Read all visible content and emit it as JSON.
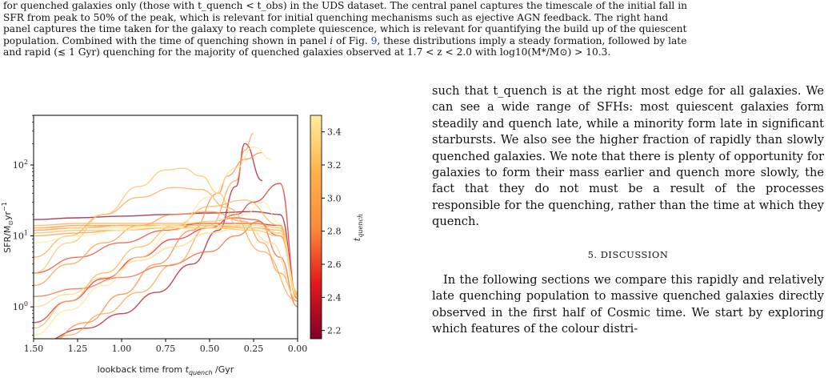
{
  "caption": {
    "line1": "for quenched galaxies only (those with t_quench < t_obs) in the UDS dataset. The central panel captures the timescale of the initial fall in",
    "line2": "SFR from peak to 50% of the peak, which is relevant for initial quenching mechanisms such as ejective AGN feedback. The right hand",
    "line3": "panel captures the time taken for the galaxy to reach complete quiescence, which is relevant for quantifying the build up of the quiescent",
    "line4a": "population. Combined with the time of quenching shown in panel ",
    "line4i": "i",
    "line4b": " of Fig. ",
    "line4ref": "9",
    "line4c": ", these distributions imply a steady formation, followed by late",
    "line5": "and rapid (≲ 1 Gyr) quenching for the majority of quenched galaxies observed at 1.7 < z < 2.0 with log10(M*/M⊙) > 10.3."
  },
  "text": {
    "para1": "such that t_quench is at the right most edge for all galaxies. We can see a wide range of SFHs: most quiescent galaxies form steadily and quench late, while a minority form late in significant starbursts. We also see the higher fraction of rapidly than slowly quenched galaxies. We note that there is plenty of opportunity for galaxies to form their mass earlier and quench more slowly, the fact that they do not must be a result of the processes responsible for the quenching, rather than the time at which they quench.",
    "section": "5. DISCUSSION",
    "para2": "In the following sections we compare this rapidly and relatively late quenching population to massive quenched galaxies directly observed in the first half of Cosmic time. We start by exploring which features of the colour distri-"
  },
  "chart_data": {
    "type": "line",
    "xlabel": "lookback time from t_quench /Gyr",
    "ylabel": "SFR/M⊙yr⁻¹",
    "colorbar_label": "t_quench",
    "x_ticks": [
      "1.50",
      "1.25",
      "1.00",
      "0.75",
      "0.50",
      "0.25",
      "0.00"
    ],
    "y_ticks": [
      "10^0",
      "10^1",
      "10^2"
    ],
    "colorbar_ticks": [
      "2.2",
      "2.4",
      "2.6",
      "2.8",
      "3.0",
      "3.2",
      "3.4"
    ],
    "xlim": [
      1.5,
      0.0
    ],
    "ylim_log10": [
      -0.45,
      2.7
    ],
    "colorbar_range": [
      2.15,
      3.5
    ],
    "colormap": [
      "#800026",
      "#e31a1c",
      "#fd8d3c",
      "#feb24c",
      "#ffeda0"
    ],
    "series": [
      {
        "tq": 2.2,
        "x": [
          1.5,
          1.25,
          1.0,
          0.75,
          0.5,
          0.25,
          0.1,
          0.0
        ],
        "y": [
          17,
          18,
          19,
          20,
          21,
          22,
          20,
          1.4
        ]
      },
      {
        "tq": 2.3,
        "x": [
          1.5,
          1.2,
          1.0,
          0.8,
          0.6,
          0.45,
          0.35,
          0.3,
          0.2
        ],
        "y": [
          0.3,
          0.5,
          0.8,
          1.6,
          4,
          12,
          50,
          200,
          60
        ]
      },
      {
        "tq": 2.4,
        "x": [
          1.5,
          1.25,
          1.0,
          0.75,
          0.5,
          0.25,
          0.1,
          0.0
        ],
        "y": [
          12,
          13,
          14,
          14,
          15,
          15,
          14,
          1.3
        ]
      },
      {
        "tq": 2.5,
        "x": [
          1.5,
          1.3,
          1.1,
          0.9,
          0.7,
          0.5,
          0.35,
          0.25,
          0.1,
          0.0
        ],
        "y": [
          0.6,
          1.2,
          2.5,
          5,
          9,
          13,
          20,
          30,
          55,
          1.3
        ]
      },
      {
        "tq": 2.6,
        "x": [
          1.5,
          1.25,
          1.0,
          0.75,
          0.5,
          0.35,
          0.25,
          0.1,
          0.0
        ],
        "y": [
          3,
          5,
          8,
          12,
          16,
          18,
          17,
          10,
          1.5
        ]
      },
      {
        "tq": 2.7,
        "x": [
          1.5,
          1.25,
          1.0,
          0.75,
          0.5,
          0.35,
          0.22,
          0.1,
          0.0
        ],
        "y": [
          1.4,
          1.8,
          2.6,
          3.8,
          6,
          10,
          16,
          5,
          1.0
        ]
      },
      {
        "tq": 2.8,
        "x": [
          1.5,
          1.2,
          1.0,
          0.8,
          0.6,
          0.45,
          0.4,
          0.3,
          0.2
        ],
        "y": [
          0.2,
          0.6,
          1.5,
          4,
          12,
          40,
          70,
          120,
          150
        ]
      },
      {
        "tq": 2.85,
        "x": [
          1.5,
          1.25,
          1.0,
          0.75,
          0.5,
          0.25,
          0.1,
          0.0
        ],
        "y": [
          13,
          14,
          14,
          14,
          14,
          13,
          11,
          1.4
        ]
      },
      {
        "tq": 2.9,
        "x": [
          1.5,
          1.3,
          1.1,
          0.9,
          0.7,
          0.5,
          0.3,
          0.2,
          0.1,
          0.0
        ],
        "y": [
          2,
          4,
          8,
          14,
          20,
          22,
          16,
          8,
          3,
          1.2
        ]
      },
      {
        "tq": 2.95,
        "x": [
          1.5,
          1.25,
          1.0,
          0.75,
          0.5,
          0.25,
          0.1,
          0.0
        ],
        "y": [
          10,
          11,
          12,
          13,
          13,
          13,
          12,
          1.5
        ]
      },
      {
        "tq": 3.0,
        "x": [
          1.5,
          1.3,
          1.1,
          0.9,
          0.7,
          0.5,
          0.35,
          0.3,
          0.25
        ],
        "y": [
          0.2,
          0.4,
          0.8,
          1.6,
          4,
          14,
          60,
          160,
          280
        ]
      },
      {
        "tq": 3.05,
        "x": [
          1.5,
          1.3,
          1.1,
          0.9,
          0.7,
          0.55,
          0.4,
          0.2,
          0.0
        ],
        "y": [
          5,
          10,
          20,
          35,
          48,
          45,
          25,
          6,
          1.2
        ]
      },
      {
        "tq": 3.1,
        "x": [
          1.5,
          1.25,
          1.0,
          0.75,
          0.5,
          0.25,
          0.1,
          0.0
        ],
        "y": [
          14,
          15,
          15,
          15,
          15,
          15,
          13,
          1.6
        ]
      },
      {
        "tq": 3.15,
        "x": [
          1.5,
          1.3,
          1.1,
          0.9,
          0.7,
          0.5,
          0.3,
          0.1,
          0.0
        ],
        "y": [
          0.5,
          1.2,
          3,
          7,
          14,
          26,
          32,
          14,
          1.3
        ]
      },
      {
        "tq": 3.2,
        "x": [
          1.5,
          1.25,
          1.0,
          0.75,
          0.5,
          0.25,
          0.1,
          0.0
        ],
        "y": [
          11,
          12,
          12,
          13,
          13,
          12,
          10,
          1.5
        ]
      },
      {
        "tq": 3.25,
        "x": [
          1.5,
          1.3,
          1.1,
          0.9,
          0.75,
          0.65,
          0.55,
          0.45,
          0.35
        ],
        "y": [
          3,
          8,
          20,
          50,
          85,
          90,
          70,
          40,
          15
        ]
      },
      {
        "tq": 3.3,
        "x": [
          1.5,
          1.25,
          1.0,
          0.75,
          0.5,
          0.25,
          0.1,
          0.0
        ],
        "y": [
          13,
          13,
          14,
          14,
          14,
          14,
          12,
          1.6
        ]
      },
      {
        "tq": 3.35,
        "x": [
          1.5,
          1.3,
          1.1,
          0.9,
          0.7,
          0.5,
          0.3,
          0.15,
          0.0
        ],
        "y": [
          1.0,
          1.5,
          2.6,
          4.5,
          7,
          11,
          14,
          8,
          1.3
        ]
      },
      {
        "tq": 3.4,
        "x": [
          1.5,
          1.25,
          1.0,
          0.75,
          0.5,
          0.25,
          0.1,
          0.0
        ],
        "y": [
          12,
          13,
          13,
          13,
          13,
          13,
          11,
          1.4
        ]
      },
      {
        "tq": 3.45,
        "x": [
          1.5,
          1.3,
          1.1,
          0.9,
          0.7,
          0.5,
          0.35,
          0.25,
          0.15
        ],
        "y": [
          0.4,
          0.9,
          2,
          5,
          12,
          35,
          90,
          180,
          120
        ]
      },
      {
        "tq": 3.5,
        "x": [
          1.5,
          1.25,
          1.0,
          0.75,
          0.5,
          0.3,
          0.2,
          0.1,
          0.0
        ],
        "y": [
          8,
          10,
          12,
          14,
          16,
          20,
          30,
          15,
          1.4
        ]
      }
    ]
  }
}
